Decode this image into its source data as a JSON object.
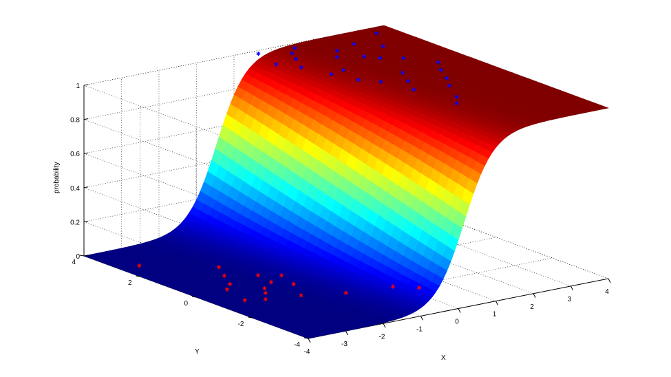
{
  "chart_data": {
    "type": "surface3d",
    "title": "",
    "xlabel": "X",
    "ylabel": "Y",
    "zlabel": "probability",
    "xlim": [
      -4,
      4
    ],
    "ylim": [
      -4,
      4
    ],
    "zlim": [
      0,
      1
    ],
    "x_ticks": [
      "-4",
      "-3",
      "-2",
      "-1",
      "0",
      "1",
      "2",
      "3",
      "4"
    ],
    "y_ticks": [
      "-4",
      "-2",
      "0",
      "2",
      "4"
    ],
    "z_ticks": [
      "0",
      "0.2",
      "0.4",
      "0.6",
      "0.8",
      "1"
    ],
    "grid": true,
    "colormap": "jet",
    "surface": {
      "function": "logistic",
      "weights": {
        "x": 2.6,
        "y": 0.2,
        "bias": 0.4
      }
    },
    "series": [
      {
        "marker": "*",
        "color": "#0000ff",
        "points": [
          [
            1.6,
            -1.8,
            1.0
          ],
          [
            1.9,
            -1.4,
            1.0
          ],
          [
            2.3,
            -0.6,
            1.0
          ],
          [
            2.6,
            -0.1,
            1.0
          ],
          [
            2.9,
            0.5,
            1.0
          ],
          [
            3.2,
            1.0,
            1.0
          ],
          [
            1.5,
            -0.4,
            1.0
          ],
          [
            1.8,
            0.2,
            1.0
          ],
          [
            2.1,
            0.8,
            1.0
          ],
          [
            1.3,
            0.5,
            1.0
          ],
          [
            1.0,
            0.9,
            1.0
          ],
          [
            0.8,
            1.6,
            1.0
          ],
          [
            1.2,
            1.7,
            1.0
          ],
          [
            0.6,
            2.4,
            1.0
          ],
          [
            0.3,
            2.9,
            1.0
          ],
          [
            1.7,
            2.6,
            1.0
          ],
          [
            2.4,
            2.0,
            1.0
          ],
          [
            2.8,
            1.7,
            1.0
          ],
          [
            2.0,
            3.0,
            1.0
          ],
          [
            1.1,
            3.4,
            1.0
          ],
          [
            0.5,
            3.8,
            1.0
          ],
          [
            2.6,
            3.2,
            1.0
          ],
          [
            3.0,
            2.7,
            1.0
          ],
          [
            3.5,
            3.6,
            1.0
          ],
          [
            1.4,
            3.7,
            1.0
          ],
          [
            2.2,
            2.3,
            1.0
          ],
          [
            0.9,
            3.0,
            1.0
          ]
        ]
      },
      {
        "marker": "*",
        "color": "#ff0000",
        "points": [
          [
            -2.2,
            1.6,
            0.0
          ],
          [
            -2.5,
            1.0,
            0.0
          ],
          [
            -1.9,
            0.6,
            0.0
          ],
          [
            -2.8,
            0.4,
            0.0
          ],
          [
            -3.1,
            0.1,
            0.0
          ],
          [
            -2.0,
            0.0,
            0.0
          ],
          [
            -2.4,
            -0.3,
            0.0
          ],
          [
            -2.6,
            -0.6,
            0.0
          ],
          [
            -1.7,
            -0.4,
            0.0
          ],
          [
            -2.9,
            -1.0,
            0.0
          ],
          [
            -2.1,
            -1.2,
            0.0
          ],
          [
            -1.5,
            0.3,
            0.0
          ],
          [
            -3.5,
            2.7,
            0.0
          ],
          [
            -1.2,
            -1.6,
            0.0
          ],
          [
            -3.3,
            -0.8,
            0.0
          ],
          [
            -0.1,
            -1.8,
            0.0
          ],
          [
            0.3,
            -2.2,
            0.0
          ]
        ]
      }
    ]
  }
}
